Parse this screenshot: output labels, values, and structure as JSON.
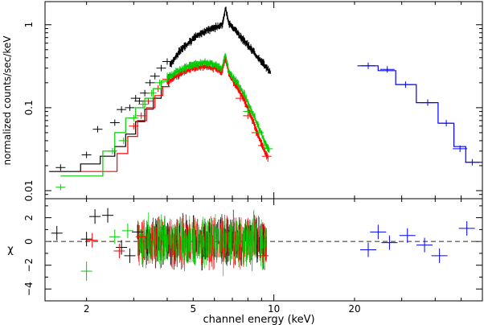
{
  "chart_data": [
    {
      "type": "line",
      "panel": "spectrum",
      "xlabel": "channel energy (keV)",
      "ylabel": "normalized counts/sec/keV",
      "xscale": "log",
      "yscale": "log",
      "xlim": [
        1.4,
        60
      ],
      "ylim": [
        0.008,
        1.9
      ],
      "xticks": [
        2,
        5,
        10,
        20
      ],
      "yticks": [
        0.01,
        0.1,
        1
      ],
      "ytick_labels": [
        "0.01",
        "0.1",
        "1"
      ],
      "series": [
        {
          "color": "#000000",
          "model_steps": [
            [
              1.45,
              1.9,
              0.017
            ],
            [
              1.9,
              2.25,
              0.021
            ],
            [
              2.25,
              2.55,
              0.026
            ],
            [
              2.55,
              2.8,
              0.034
            ],
            [
              2.8,
              3.05,
              0.048
            ],
            [
              3.05,
              3.3,
              0.068
            ],
            [
              3.3,
              3.55,
              0.096
            ],
            [
              3.55,
              3.8,
              0.13
            ],
            [
              3.8,
              4.05,
              0.18
            ],
            [
              4.05,
              4.3,
              0.25
            ]
          ],
          "model_curve": [
            [
              4.1,
              0.33
            ],
            [
              4.5,
              0.5
            ],
            [
              5.0,
              0.68
            ],
            [
              5.5,
              0.83
            ],
            [
              6.0,
              0.93
            ],
            [
              6.3,
              0.98
            ],
            [
              6.45,
              1.02
            ],
            [
              6.6,
              1.6
            ],
            [
              6.8,
              1.05
            ],
            [
              7.2,
              0.85
            ],
            [
              7.8,
              0.62
            ],
            [
              8.5,
              0.45
            ],
            [
              9.2,
              0.33
            ],
            [
              9.7,
              0.27
            ]
          ],
          "points": [
            [
              1.6,
              0.019
            ],
            [
              2.0,
              0.027
            ],
            [
              2.2,
              0.055
            ],
            [
              2.55,
              0.066
            ],
            [
              2.7,
              0.095
            ],
            [
              2.9,
              0.1
            ],
            [
              3.05,
              0.13
            ],
            [
              3.15,
              0.12
            ],
            [
              3.3,
              0.15
            ],
            [
              3.45,
              0.2
            ],
            [
              3.6,
              0.24
            ],
            [
              3.8,
              0.3
            ],
            [
              4.0,
              0.36
            ]
          ]
        },
        {
          "color": "#ff0000",
          "model_steps": [
            [
              1.9,
              2.6,
              0.017
            ],
            [
              2.6,
              2.85,
              0.028
            ],
            [
              2.85,
              3.1,
              0.045
            ],
            [
              3.1,
              3.35,
              0.07
            ],
            [
              3.35,
              3.6,
              0.1
            ],
            [
              3.6,
              3.85,
              0.14
            ],
            [
              3.85,
              4.1,
              0.18
            ]
          ],
          "model_curve": [
            [
              4.0,
              0.2
            ],
            [
              4.5,
              0.26
            ],
            [
              5.0,
              0.3
            ],
            [
              5.5,
              0.32
            ],
            [
              6.0,
              0.3
            ],
            [
              6.4,
              0.27
            ],
            [
              6.6,
              0.4
            ],
            [
              6.8,
              0.25
            ],
            [
              7.2,
              0.19
            ],
            [
              7.8,
              0.12
            ],
            [
              8.5,
              0.06
            ],
            [
              9.2,
              0.03
            ],
            [
              9.5,
              0.025
            ]
          ],
          "points": [
            [
              3.0,
              0.06
            ],
            [
              3.2,
              0.08
            ],
            [
              3.4,
              0.12
            ],
            [
              3.7,
              0.17
            ],
            [
              4.0,
              0.22
            ],
            [
              7.5,
              0.13
            ],
            [
              8.0,
              0.08
            ],
            [
              8.6,
              0.05
            ],
            [
              9.1,
              0.035
            ],
            [
              9.4,
              0.026
            ]
          ]
        },
        {
          "color": "#00cc00",
          "model_steps": [
            [
              1.6,
              2.3,
              0.015
            ],
            [
              2.3,
              2.55,
              0.03
            ],
            [
              2.55,
              2.8,
              0.05
            ],
            [
              2.8,
              3.05,
              0.075
            ],
            [
              3.05,
              3.3,
              0.1
            ],
            [
              3.3,
              3.55,
              0.13
            ],
            [
              3.55,
              3.8,
              0.17
            ],
            [
              3.8,
              4.05,
              0.21
            ]
          ],
          "model_curve": [
            [
              4.0,
              0.23
            ],
            [
              4.5,
              0.29
            ],
            [
              5.0,
              0.33
            ],
            [
              5.5,
              0.35
            ],
            [
              6.0,
              0.33
            ],
            [
              6.4,
              0.3
            ],
            [
              6.6,
              0.43
            ],
            [
              6.8,
              0.27
            ],
            [
              7.2,
              0.21
            ],
            [
              7.8,
              0.14
            ],
            [
              8.5,
              0.075
            ],
            [
              9.2,
              0.04
            ],
            [
              9.6,
              0.03
            ]
          ],
          "points": [
            [
              1.6,
              0.011
            ],
            [
              2.5,
              0.03
            ],
            [
              2.75,
              0.04
            ],
            [
              3.0,
              0.075
            ],
            [
              3.25,
              0.11
            ],
            [
              3.5,
              0.15
            ],
            [
              3.75,
              0.2
            ],
            [
              8.0,
              0.09
            ],
            [
              8.8,
              0.05
            ],
            [
              9.5,
              0.032
            ]
          ]
        },
        {
          "color": "#0000ff",
          "model_steps": [
            [
              20.5,
              24.5,
              0.32
            ],
            [
              24.5,
              28.5,
              0.28
            ],
            [
              28.5,
              34.0,
              0.19
            ],
            [
              34.0,
              41.0,
              0.115
            ],
            [
              41.0,
              47.0,
              0.065
            ],
            [
              47.0,
              52.0,
              0.034
            ],
            [
              52.0,
              60.0,
              0.022
            ]
          ],
          "points": [
            [
              22.5,
              0.32
            ],
            [
              26.5,
              0.29
            ],
            [
              31.0,
              0.19
            ],
            [
              37.5,
              0.115
            ],
            [
              44.0,
              0.065
            ],
            [
              49.5,
              0.032
            ],
            [
              55.0,
              0.022
            ]
          ]
        }
      ]
    },
    {
      "type": "scatter",
      "panel": "residuals",
      "xlabel": "channel energy (keV)",
      "ylabel": "χ",
      "xscale": "log",
      "xlim": [
        1.4,
        60
      ],
      "ylim": [
        -5,
        3.6
      ],
      "xticks": [
        2,
        5,
        10,
        20
      ],
      "xtick_labels": [
        "2",
        "5",
        "10",
        "20"
      ],
      "yticks": [
        -4,
        -2,
        0,
        2
      ],
      "ytick_labels": [
        "−4",
        "−2",
        "0",
        "2"
      ],
      "reference_line": 0,
      "series": [
        {
          "color": "#000000",
          "points": [
            [
              1.55,
              0.7
            ],
            [
              2.0,
              0.2
            ],
            [
              2.15,
              2.1
            ],
            [
              2.4,
              2.2
            ],
            [
              2.7,
              -0.5
            ],
            [
              2.9,
              -1.2
            ],
            [
              3.1,
              0.8
            ]
          ]
        },
        {
          "color": "#ff0000",
          "points": [
            [
              2.1,
              0.1
            ],
            [
              2.65,
              -0.8
            ],
            [
              3.2,
              0.4
            ],
            [
              9.1,
              -1.2
            ]
          ]
        },
        {
          "color": "#00cc00",
          "points": [
            [
              2.0,
              -2.5
            ],
            [
              2.55,
              0.4
            ],
            [
              2.85,
              0.9
            ]
          ]
        },
        {
          "color": "#0000ff",
          "points": [
            [
              22.5,
              -0.7
            ],
            [
              24.5,
              0.8
            ],
            [
              27.0,
              -0.1
            ],
            [
              31.5,
              0.5
            ],
            [
              36.5,
              -0.3
            ],
            [
              41.5,
              -1.2
            ],
            [
              52.5,
              1.1
            ]
          ]
        }
      ]
    }
  ]
}
